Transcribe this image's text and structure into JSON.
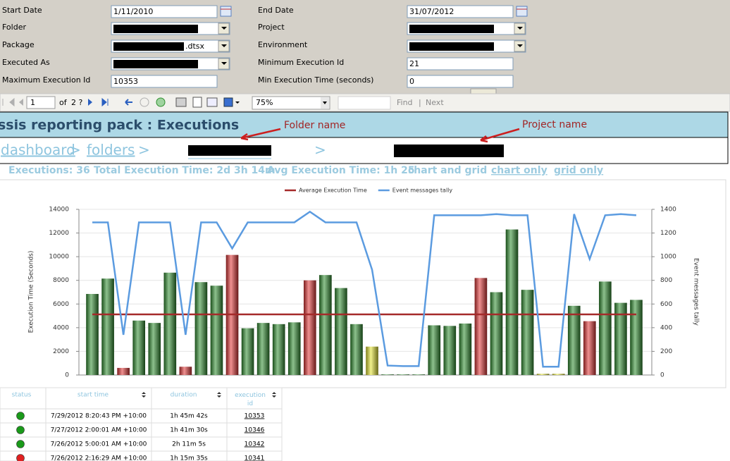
{
  "parameters": {
    "left": [
      {
        "label": "Start Date",
        "value": "1/11/2010"
      },
      {
        "label": "Folder"
      },
      {
        "label": "Package",
        "value": ".dtsx"
      },
      {
        "label": "Executed As"
      },
      {
        "label": "Maximum Execution Id",
        "value": "10353"
      }
    ],
    "right": [
      {
        "label": "End Date",
        "value": "31/07/2012"
      },
      {
        "label": "Project"
      },
      {
        "label": "Environment"
      },
      {
        "label": "Minimum Execution Id",
        "value": "21"
      },
      {
        "label": "Min Execution Time (seconds)",
        "value": "0"
      }
    ]
  },
  "toolbar": {
    "page": "1",
    "of": "of",
    "pages": "2 ?",
    "zoom": "75%",
    "find": "Find",
    "separator": "|",
    "next": "Next"
  },
  "header": {
    "title": "ssis reporting pack : Executions",
    "annotations": [
      "Folder name",
      "Project name"
    ]
  },
  "breadcrumb": {
    "items": [
      "dashboard",
      ">",
      "folders",
      ">",
      ">"
    ]
  },
  "summary": {
    "items": [
      "Executions: 36",
      "Total Execution Time: 2d 3h 14m",
      "Avg Execution Time: 1h 25",
      "chart and grid",
      "chart only",
      "grid only"
    ]
  },
  "chart_data": {
    "type": "bar",
    "y_label": "Execution Time (Seconds)",
    "y2_label": "Event messages tally",
    "ylim": [
      0,
      14000
    ],
    "yticks": [
      0,
      2000,
      4000,
      6000,
      8000,
      10000,
      12000,
      14000
    ],
    "y2lim": [
      0,
      1400
    ],
    "y2ticks": [
      0,
      200,
      400,
      600,
      800,
      1000,
      1200,
      1400
    ],
    "grid": true,
    "legend": "top",
    "series": [
      {
        "type": "bar",
        "values": [
          6850,
          8150,
          600,
          4600,
          4400,
          8650,
          700,
          7850,
          7550,
          10150,
          3950,
          4400,
          4300,
          4450,
          8000,
          8450,
          7350,
          4300,
          2400,
          50,
          50,
          50,
          4200,
          4150,
          4350,
          8200,
          7000,
          12300,
          7200,
          100,
          100,
          5850,
          4550,
          7900,
          6100,
          6350
        ],
        "colors": [
          "#2f8f2f",
          "#2f8f2f",
          "#e23535",
          "#2f8f2f",
          "#2f8f2f",
          "#2f8f2f",
          "#e23535",
          "#2f8f2f",
          "#2f8f2f",
          "#e23535",
          "#2f8f2f",
          "#2f8f2f",
          "#2f8f2f",
          "#2f8f2f",
          "#e23535",
          "#2f8f2f",
          "#2f8f2f",
          "#2f8f2f",
          "#e6e630",
          "#2f8f2f",
          "#2f8f2f",
          "#2f8f2f",
          "#2f8f2f",
          "#2f8f2f",
          "#2f8f2f",
          "#e23535",
          "#2f8f2f",
          "#2f8f2f",
          "#2f8f2f",
          "#e6e630",
          "#e6e630",
          "#2f8f2f",
          "#e23535",
          "#2f8f2f",
          "#2f8f2f",
          "#2f8f2f"
        ]
      },
      {
        "type": "line",
        "name": "Average Execution Time",
        "color": "#a52a2a",
        "values": [
          5123,
          5123,
          5123,
          5123,
          5123,
          5123,
          5123,
          5123,
          5123,
          5123,
          5123,
          5123,
          5123,
          5123,
          5123,
          5123,
          5123,
          5123,
          5123,
          5123,
          5123,
          5123,
          5123,
          5123,
          5123,
          5123,
          5123,
          5123,
          5123,
          5123,
          5123,
          5123,
          5123,
          5123,
          5123,
          5123
        ]
      },
      {
        "type": "line",
        "name": "Event messages tally",
        "color": "#5b9be0",
        "axis": "y2",
        "values": [
          1290,
          1290,
          340,
          1290,
          1290,
          1290,
          340,
          1290,
          1290,
          1070,
          1290,
          1290,
          1290,
          1290,
          1380,
          1290,
          1290,
          1290,
          890,
          80,
          75,
          75,
          1350,
          1350,
          1350,
          1350,
          1360,
          1350,
          1350,
          70,
          70,
          1360,
          980,
          1350,
          1360,
          1350
        ]
      }
    ]
  },
  "table": {
    "columns": [
      "status",
      "start time",
      "duration",
      "execution id"
    ],
    "rows": [
      [
        "#1a9a1a",
        "7/29/2012 8:20:43 PM +10:00",
        "1h 45m 42s",
        "10353"
      ],
      [
        "#1a9a1a",
        "7/27/2012 2:00:01 AM +10:00",
        "1h 41m 30s",
        "10346"
      ],
      [
        "#1a9a1a",
        "7/26/2012 5:00:01 AM +10:00",
        "2h 11m 5s",
        "10342"
      ],
      [
        "#e02020",
        "7/26/2012 2:16:29 AM +10:00",
        "1h 15m 35s",
        "10341"
      ]
    ]
  }
}
